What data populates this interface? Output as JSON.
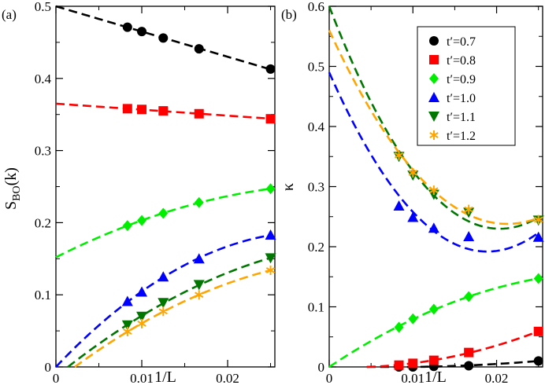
{
  "chart_data": [
    {
      "type": "scatter",
      "panel_label": "(a)",
      "xlabel": "1/L",
      "ylabel": "S",
      "ylabel_sub": "BO",
      "ylabel_suffix": "(k)",
      "xlim": [
        0,
        0.0255
      ],
      "ylim": [
        0,
        0.5
      ],
      "xticks": [
        0,
        0.01,
        0.02
      ],
      "xtick_labels": [
        "0",
        "0.01",
        "0.02"
      ],
      "yticks": [
        0,
        0.1,
        0.2,
        0.3,
        0.4,
        0.5
      ],
      "ytick_labels": [
        "0",
        "0.1",
        "0.2",
        "0.3",
        "0.4",
        "0.5"
      ],
      "series": [
        {
          "name": "t′=0.7",
          "color": "#000000",
          "marker": "circle",
          "x": [
            0.00833,
            0.01,
            0.0125,
            0.01667,
            0.025
          ],
          "y": [
            0.471,
            0.465,
            0.456,
            0.441,
            0.413
          ],
          "fit": {
            "type": "linear",
            "x0": 0,
            "y0": 0.5
          }
        },
        {
          "name": "t′=0.8",
          "color": "#ff0000",
          "marker": "square",
          "x": [
            0.00833,
            0.01,
            0.0125,
            0.01667,
            0.025
          ],
          "y": [
            0.358,
            0.357,
            0.355,
            0.351,
            0.344
          ],
          "fit": {
            "type": "linear",
            "x0": 0,
            "y0": 0.365
          }
        },
        {
          "name": "t′=0.9",
          "color": "#00ee00",
          "marker": "diamond",
          "x": [
            0.00833,
            0.01,
            0.0125,
            0.01667,
            0.025
          ],
          "y": [
            0.196,
            0.203,
            0.213,
            0.228,
            0.247
          ],
          "fit": {
            "type": "quadratic",
            "x0": 0,
            "y0": 0.152
          }
        },
        {
          "name": "t′=1.0",
          "color": "#0000ff",
          "marker": "triangle-up",
          "x": [
            0.00833,
            0.01,
            0.0125,
            0.01667,
            0.025
          ],
          "y": [
            0.091,
            0.104,
            0.125,
            0.15,
            0.183
          ],
          "fit": {
            "type": "quadratic",
            "x0": 0,
            "y0": 0.0
          }
        },
        {
          "name": "t′=1.1",
          "color": "#007700",
          "marker": "triangle-down",
          "x": [
            0.00833,
            0.01,
            0.0125,
            0.01667,
            0.025
          ],
          "y": [
            0.058,
            0.07,
            0.089,
            0.114,
            0.151
          ],
          "fit": {
            "type": "quadratic",
            "x0": 0.0014,
            "y0": 0.0
          }
        },
        {
          "name": "t′=1.2",
          "color": "#ffa500",
          "marker": "asterisk",
          "x": [
            0.00833,
            0.01,
            0.0125,
            0.01667,
            0.025
          ],
          "y": [
            0.049,
            0.06,
            0.077,
            0.1,
            0.134
          ],
          "fit": {
            "type": "quadratic",
            "x0": 0.0022,
            "y0": 0.0
          }
        }
      ]
    },
    {
      "type": "scatter",
      "panel_label": "(b)",
      "xlabel": "1/L",
      "ylabel": "κ",
      "xlim": [
        0,
        0.0255
      ],
      "ylim": [
        0,
        0.6
      ],
      "xticks": [
        0,
        0.01,
        0.02
      ],
      "xtick_labels": [
        "0",
        "0.01",
        "0.02"
      ],
      "yticks": [
        0,
        0.1,
        0.2,
        0.3,
        0.4,
        0.5,
        0.6
      ],
      "ytick_labels": [
        "0",
        "0.1",
        "0.2",
        "0.3",
        "0.4",
        "0.5",
        "0.6"
      ],
      "legend_position": "top-right",
      "series": [
        {
          "name": "t′=0.7",
          "color": "#000000",
          "marker": "circle",
          "x": [
            0.00833,
            0.01,
            0.0125,
            0.01667,
            0.025
          ],
          "y": [
            0.0,
            0.0,
            0.001,
            0.002,
            0.01
          ],
          "fit": {
            "type": "quadratic",
            "x0": 0.0045,
            "y0": 0.0
          }
        },
        {
          "name": "t′=0.8",
          "color": "#ff0000",
          "marker": "square",
          "x": [
            0.00833,
            0.01,
            0.0125,
            0.01667,
            0.025
          ],
          "y": [
            0.003,
            0.006,
            0.011,
            0.024,
            0.059
          ],
          "fit": {
            "type": "quadratic",
            "x0": 0.0045,
            "y0": 0.0
          }
        },
        {
          "name": "t′=0.9",
          "color": "#00ee00",
          "marker": "diamond",
          "x": [
            0.00833,
            0.01,
            0.0125,
            0.01667,
            0.025
          ],
          "y": [
            0.066,
            0.08,
            0.096,
            0.117,
            0.147
          ],
          "fit": {
            "type": "linearish",
            "x0": 0,
            "y0": 0.0
          }
        },
        {
          "name": "t′=1.0",
          "color": "#0000ff",
          "marker": "triangle-up",
          "x": [
            0.00833,
            0.01,
            0.0125,
            0.01667,
            0.025
          ],
          "y": [
            0.268,
            0.249,
            0.231,
            0.217,
            0.216
          ],
          "fit": {
            "type": "quadratic",
            "x0": 0,
            "y0": 0.49
          }
        },
        {
          "name": "t′=1.1",
          "color": "#007700",
          "marker": "triangle-down",
          "x": [
            0.00833,
            0.01,
            0.0125,
            0.01667,
            0.025
          ],
          "y": [
            0.35,
            0.319,
            0.287,
            0.257,
            0.244
          ],
          "fit": {
            "type": "quadratic",
            "x0": 0,
            "y0": 0.6
          }
        },
        {
          "name": "t′=1.2",
          "color": "#ffa500",
          "marker": "asterisk",
          "x": [
            0.00833,
            0.01,
            0.0125,
            0.01667,
            0.025
          ],
          "y": [
            0.352,
            0.323,
            0.294,
            0.262,
            0.245
          ],
          "fit": {
            "type": "quadratic",
            "x0": 0,
            "y0": 0.56
          }
        }
      ]
    }
  ]
}
